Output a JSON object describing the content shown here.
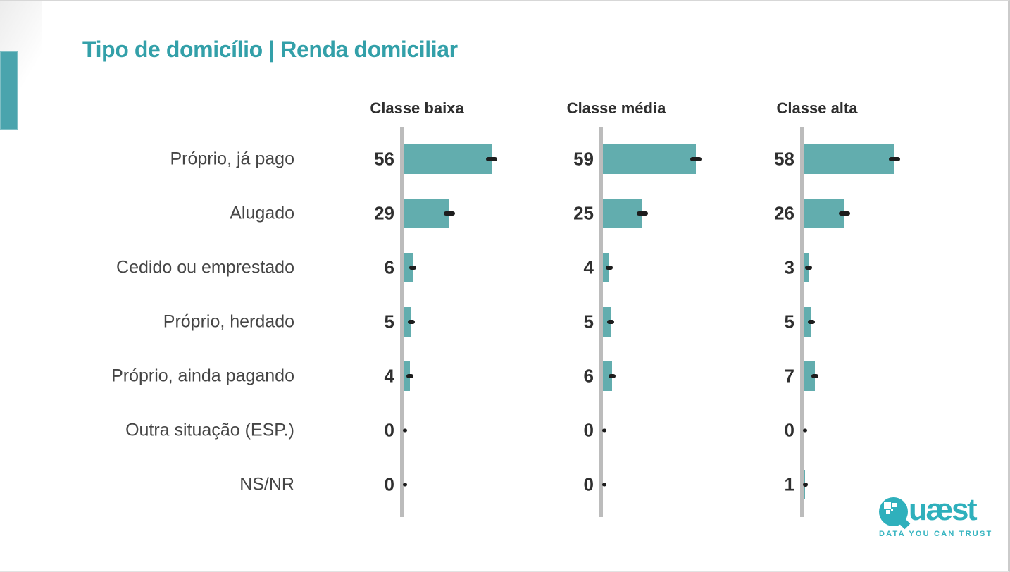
{
  "page": {
    "title": "Tipo de domicílio | Renda domiciliar"
  },
  "chart_data": {
    "type": "bar",
    "orientation": "horizontal",
    "title": "Tipo de domicílio | Renda domiciliar",
    "categories": [
      "Próprio, já pago",
      "Alugado",
      "Cedido ou emprestado",
      "Próprio, herdado",
      "Próprio, ainda pagando",
      "Outra situação (ESP.)",
      "NS/NR"
    ],
    "series": [
      {
        "name": "Classe baixa",
        "values": [
          56,
          29,
          6,
          5,
          4,
          0,
          0
        ]
      },
      {
        "name": "Classe média",
        "values": [
          59,
          25,
          4,
          5,
          6,
          0,
          0
        ]
      },
      {
        "name": "Classe alta",
        "values": [
          58,
          26,
          3,
          5,
          7,
          0,
          1
        ]
      }
    ],
    "data_labels": true,
    "legend_position": "column-headers-top",
    "grid": false,
    "bar_color": "#62adae",
    "axis_color": "#bcbcbc",
    "marker_color": "#1d1d1d",
    "label_color": "#454545",
    "value_color": "#2f2f2f",
    "header_color": "#2e2e2e"
  },
  "branding": {
    "logo_text": "Quæst",
    "tagline": "DATA YOU CAN TRUST",
    "logo_color": "#2fb0bc",
    "accent_color": "#4aa4ad",
    "title_color": "#33a0a9"
  }
}
